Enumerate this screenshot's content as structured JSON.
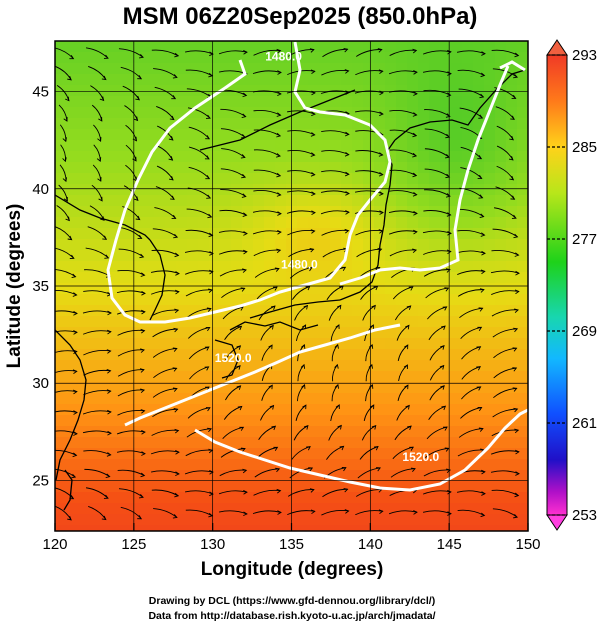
{
  "title": "MSM 06Z20Sep2025 (850.0hPa)",
  "xlabel": "Longitude (degrees)",
  "ylabel": "Latitude  (degrees)",
  "x_ticks": [
    120,
    125,
    130,
    135,
    140,
    145,
    150
  ],
  "y_ticks": [
    25,
    30,
    35,
    40,
    45
  ],
  "x_range": [
    120,
    150
  ],
  "y_range": [
    22.4,
    47.6
  ],
  "colorbar": {
    "ticks": [
      293,
      285,
      277,
      269,
      261,
      253
    ],
    "range": [
      253,
      293
    ]
  },
  "contours": [
    {
      "label": "1480.0",
      "lon": 135.5,
      "lat": 35.9
    },
    {
      "label": "1480.0",
      "lon": 134.5,
      "lat": 46.6
    },
    {
      "label": "1520.0",
      "lon": 131.3,
      "lat": 31.1
    },
    {
      "label": "1520.0",
      "lon": 143.2,
      "lat": 26.0
    }
  ],
  "credits": [
    "Drawing by DCL (https://www.gfd-dennou.org/library/dcl/)",
    "Data from http://database.rish.kyoto-u.ac.jp/arch/jmadata/"
  ]
}
